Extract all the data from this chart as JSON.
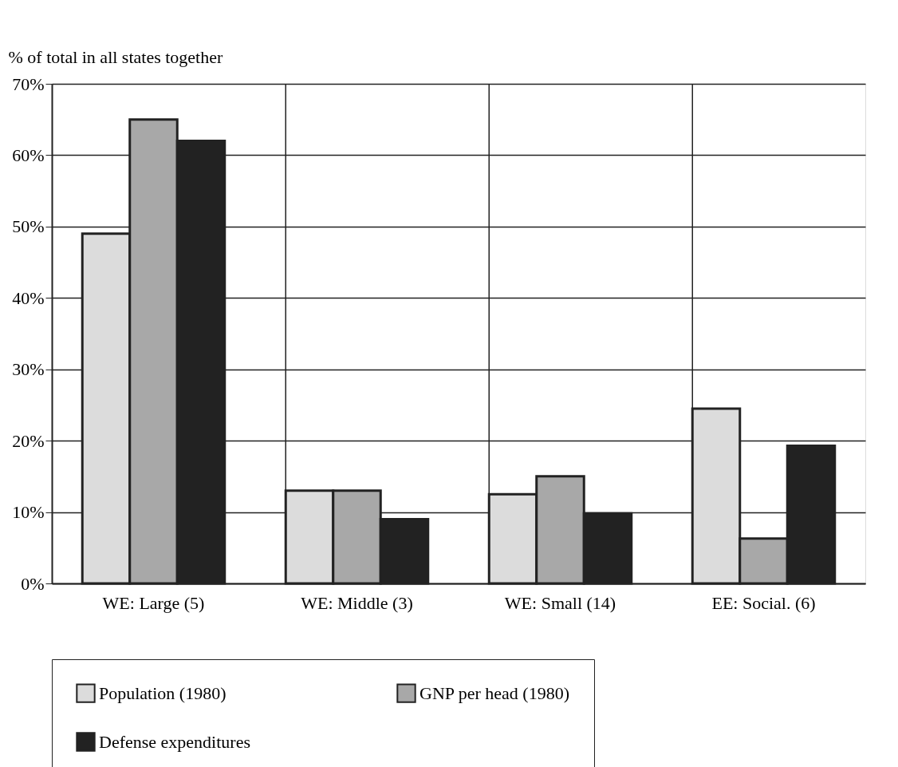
{
  "chart_data": {
    "type": "bar",
    "ylabel": "% of total in all states together",
    "categories": [
      "WE: Large (5)",
      "WE: Middle (3)",
      "WE: Small (14)",
      "EE: Social. (6)"
    ],
    "series": [
      {
        "name": "Population (1980)",
        "color": "#dcdcdc",
        "values": [
          49,
          13,
          12.5,
          24.5
        ]
      },
      {
        "name": "GNP per head (1980)",
        "color": "#a8a8a8",
        "values": [
          65,
          13,
          15,
          6.3
        ]
      },
      {
        "name": "Defense expenditures",
        "color": "#222222",
        "values": [
          62,
          9,
          9.8,
          19.3
        ]
      }
    ],
    "ylim": [
      0,
      70
    ],
    "yticks": [
      {
        "value": 0,
        "label": "0%"
      },
      {
        "value": 10,
        "label": "10%"
      },
      {
        "value": 20,
        "label": "20%"
      },
      {
        "value": 30,
        "label": "30%"
      },
      {
        "value": 40,
        "label": "40%"
      },
      {
        "value": 50,
        "label": "50%"
      },
      {
        "value": 60,
        "label": "60%"
      },
      {
        "value": 70,
        "label": "70%"
      }
    ],
    "grid": true,
    "legend": "bottom"
  }
}
